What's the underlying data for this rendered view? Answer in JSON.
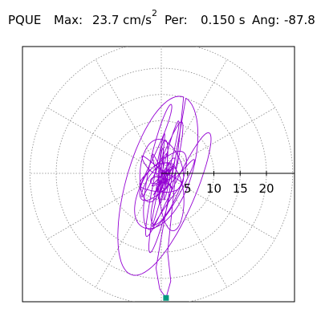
{
  "header": {
    "station": "PQUE",
    "max_label": "Max:",
    "max_value": "23.7 cm/s",
    "max_exponent": "2",
    "period_label": "Per:",
    "period_value": "0.150 s",
    "angle_label": "Ang:",
    "angle_value": "-87.8"
  },
  "chart_data": {
    "type": "polar-particle-motion",
    "max_acceleration_cm_s2": 23.7,
    "period_s": 0.15,
    "angle_deg": -87.8,
    "radial_ticks": [
      5,
      10,
      15,
      20
    ],
    "radial_tick_labels": [
      "5",
      "10",
      "15",
      "20"
    ],
    "radial_max": 25,
    "angular_gridlines_deg": [
      0,
      30,
      60,
      90,
      120,
      150,
      180,
      210,
      240,
      270,
      300,
      330
    ],
    "grid": true,
    "trace_color": "#9400d3",
    "marker_color": "#009980",
    "peak_point": {
      "x": 0.9,
      "y": -23.7
    }
  }
}
